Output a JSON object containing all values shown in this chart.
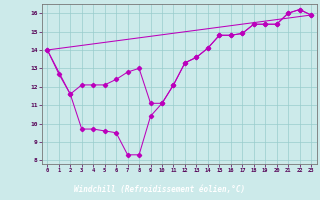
{
  "xlabel": "Windchill (Refroidissement éolien,°C)",
  "xlim_min": -0.5,
  "xlim_max": 23.5,
  "ylim_min": 7.8,
  "ylim_max": 16.5,
  "xticks": [
    0,
    1,
    2,
    3,
    4,
    5,
    6,
    7,
    8,
    9,
    10,
    11,
    12,
    13,
    14,
    15,
    16,
    17,
    18,
    19,
    20,
    21,
    22,
    23
  ],
  "yticks": [
    8,
    9,
    10,
    11,
    12,
    13,
    14,
    15,
    16
  ],
  "bg_color": "#cceaea",
  "line_color": "#bb00bb",
  "grid_color": "#99cccc",
  "label_fg": "#ffffff",
  "label_bg": "#660066",
  "series1_x": [
    0,
    1,
    2,
    3,
    4,
    5,
    6,
    7,
    8,
    9,
    10,
    11,
    12,
    13,
    14,
    15,
    16,
    17,
    18,
    19,
    20,
    21,
    22,
    23
  ],
  "series1_y": [
    14.0,
    12.7,
    11.6,
    9.7,
    9.7,
    9.6,
    9.5,
    8.3,
    8.3,
    10.4,
    11.1,
    12.1,
    13.3,
    13.6,
    14.1,
    14.8,
    14.8,
    14.9,
    15.4,
    15.4,
    15.4,
    16.0,
    16.2,
    15.9
  ],
  "series2_x": [
    0,
    2,
    3,
    4,
    5,
    6,
    7,
    8,
    9,
    10,
    11,
    12,
    13,
    14,
    15,
    16,
    17,
    18,
    19,
    20,
    21,
    22,
    23
  ],
  "series2_y": [
    14.0,
    11.6,
    12.1,
    12.1,
    12.1,
    12.4,
    12.8,
    13.0,
    11.1,
    11.1,
    12.1,
    13.3,
    13.6,
    14.1,
    14.8,
    14.8,
    14.9,
    15.4,
    15.4,
    15.4,
    16.0,
    16.2,
    15.9
  ],
  "series3_x": [
    0,
    23
  ],
  "series3_y": [
    14.0,
    15.9
  ]
}
